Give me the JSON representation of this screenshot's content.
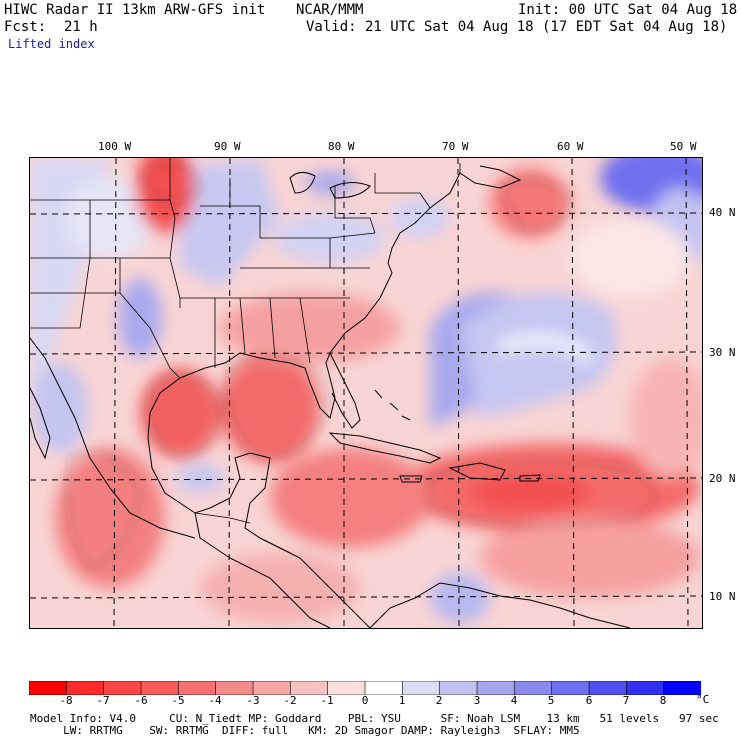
{
  "header": {
    "title": "HIWC Radar II 13km ARW-GFS init",
    "org": "NCAR/MMM",
    "init": "Init: 00 UTC Sat 04 Aug 18",
    "fcst_label": "Fcst:",
    "fcst_value": "21 h",
    "valid": "Valid: 21 UTC Sat 04 Aug 18 (17 EDT Sat 04 Aug 18)",
    "field": "Lifted index"
  },
  "map": {
    "lon_labels": [
      "100 W",
      "90 W",
      "80 W",
      "70 W",
      "60 W",
      "50 W"
    ],
    "lat_labels": [
      "40 N",
      "30 N",
      "20 N",
      "10 N"
    ]
  },
  "colorbar": {
    "tick_labels": [
      "-8",
      "-7",
      "-6",
      "-5",
      "-4",
      "-3",
      "-2",
      "-1",
      "0",
      "1",
      "2",
      "3",
      "4",
      "5",
      "6",
      "7",
      "8"
    ],
    "unit": "°C",
    "colors": [
      "#ff0000",
      "#ff2a2a",
      "#ff4545",
      "#fa5a5a",
      "#f77070",
      "#f58a8a",
      "#f6a4a4",
      "#f8c2c2",
      "#fbdede",
      "#ffffff",
      "#dcdcf6",
      "#c2c2f2",
      "#a5a5ee",
      "#8a8aee",
      "#6e6ef0",
      "#5050f2",
      "#3030f5",
      "#0000ff"
    ]
  },
  "footer": {
    "line1": "Model Info: V4.0     CU: N_Tiedt MP: Goddard    PBL: YSU      SF: Noah LSM    13 km   51 levels   97 sec",
    "line2": "     LW: RRTMG    SW: RRTMG  DIFF: full   KM: 2D Smagor DAMP: Rayleigh3  SFLAY: MM5"
  }
}
